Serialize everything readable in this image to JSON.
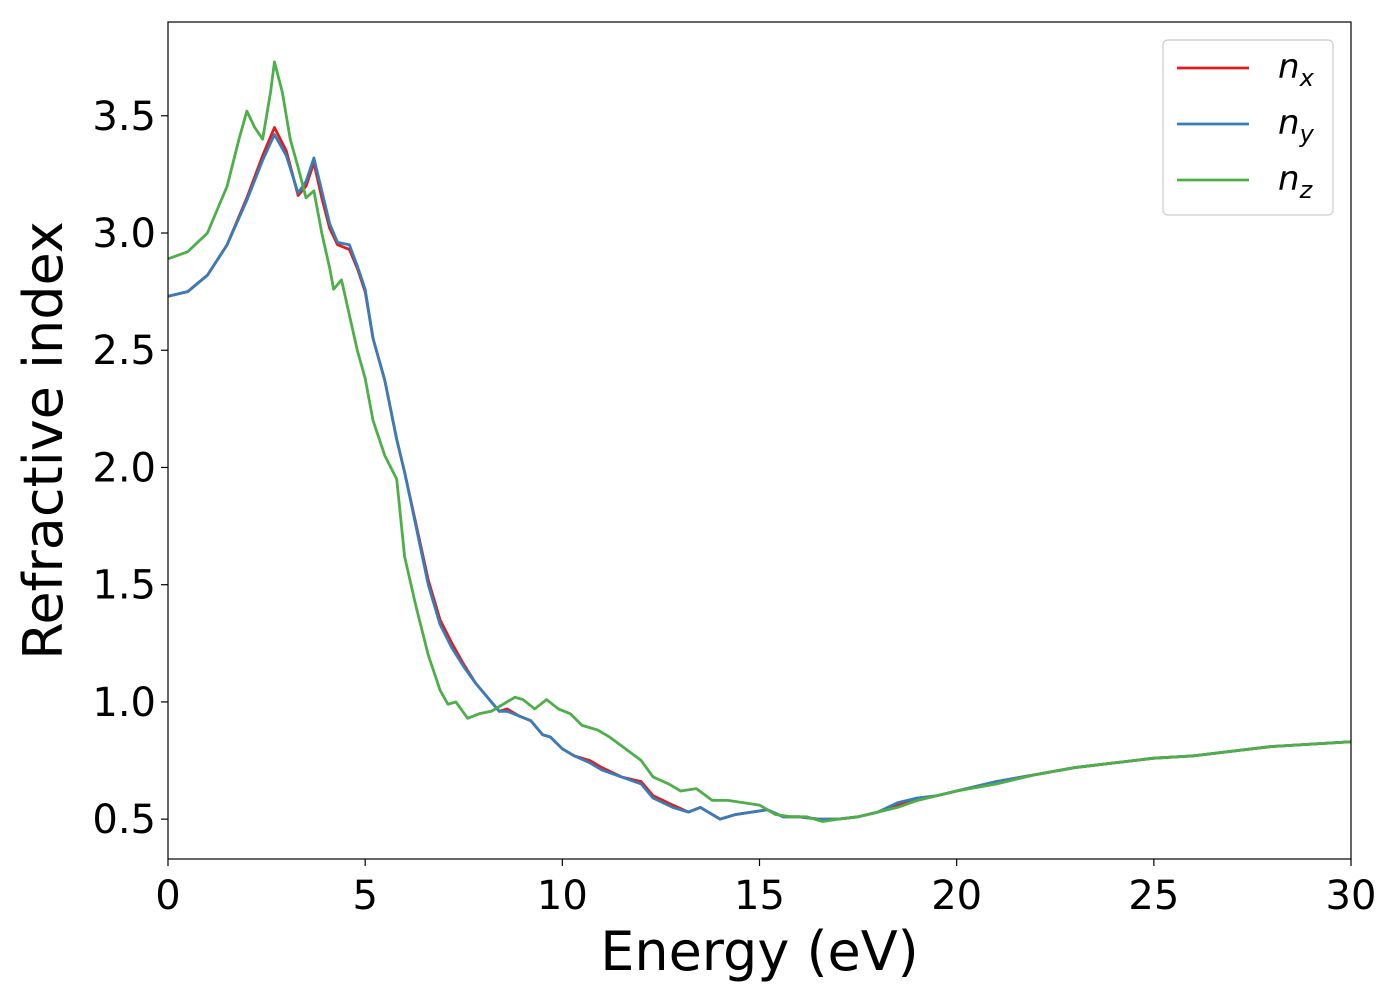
{
  "chart_data": {
    "type": "line",
    "xlabel": "Energy (eV)",
    "ylabel": "Refractive index",
    "xlim": [
      0,
      30
    ],
    "ylim": [
      0.33,
      3.9
    ],
    "xticks": [
      0,
      5,
      10,
      15,
      20,
      25,
      30
    ],
    "xtick_labels": [
      "0",
      "5",
      "10",
      "15",
      "20",
      "25",
      "30"
    ],
    "yticks": [
      0.5,
      1.0,
      1.5,
      2.0,
      2.5,
      3.0,
      3.5
    ],
    "ytick_labels": [
      "0.5",
      "1.0",
      "1.5",
      "2.0",
      "2.5",
      "3.0",
      "3.5"
    ],
    "grid": false,
    "legend_position": "top-right",
    "series": [
      {
        "name": "n",
        "subscript": "x",
        "color": "#e41a1c",
        "points": [
          [
            0,
            2.73
          ],
          [
            0.5,
            2.75
          ],
          [
            1.0,
            2.82
          ],
          [
            1.5,
            2.95
          ],
          [
            2.0,
            3.15
          ],
          [
            2.4,
            3.33
          ],
          [
            2.7,
            3.45
          ],
          [
            3.0,
            3.35
          ],
          [
            3.3,
            3.16
          ],
          [
            3.5,
            3.2
          ],
          [
            3.7,
            3.3
          ],
          [
            3.9,
            3.15
          ],
          [
            4.1,
            3.02
          ],
          [
            4.3,
            2.95
          ],
          [
            4.6,
            2.93
          ],
          [
            4.8,
            2.85
          ],
          [
            5.0,
            2.75
          ],
          [
            5.2,
            2.55
          ],
          [
            5.5,
            2.37
          ],
          [
            5.8,
            2.12
          ],
          [
            6.0,
            1.98
          ],
          [
            6.3,
            1.75
          ],
          [
            6.6,
            1.52
          ],
          [
            6.9,
            1.35
          ],
          [
            7.2,
            1.25
          ],
          [
            7.5,
            1.16
          ],
          [
            7.8,
            1.08
          ],
          [
            8.1,
            1.02
          ],
          [
            8.4,
            0.96
          ],
          [
            8.6,
            0.97
          ],
          [
            8.9,
            0.94
          ],
          [
            9.2,
            0.92
          ],
          [
            9.5,
            0.86
          ],
          [
            9.7,
            0.85
          ],
          [
            10.0,
            0.8
          ],
          [
            10.3,
            0.77
          ],
          [
            10.7,
            0.75
          ],
          [
            11.0,
            0.72
          ],
          [
            11.5,
            0.68
          ],
          [
            12.0,
            0.66
          ],
          [
            12.3,
            0.6
          ],
          [
            12.8,
            0.56
          ],
          [
            13.2,
            0.53
          ],
          [
            13.5,
            0.55
          ],
          [
            13.8,
            0.52
          ],
          [
            14.0,
            0.5
          ],
          [
            14.4,
            0.52
          ],
          [
            14.8,
            0.53
          ],
          [
            15.2,
            0.54
          ],
          [
            15.6,
            0.51
          ],
          [
            16.0,
            0.51
          ],
          [
            16.5,
            0.5
          ],
          [
            17.0,
            0.5
          ],
          [
            17.5,
            0.51
          ],
          [
            18.0,
            0.53
          ],
          [
            18.5,
            0.56
          ],
          [
            19.0,
            0.58
          ],
          [
            19.5,
            0.6
          ],
          [
            20.0,
            0.62
          ],
          [
            21.0,
            0.66
          ],
          [
            22.0,
            0.69
          ],
          [
            23.0,
            0.72
          ],
          [
            24.0,
            0.74
          ],
          [
            25.0,
            0.76
          ],
          [
            26.0,
            0.77
          ],
          [
            27.0,
            0.79
          ],
          [
            28.0,
            0.81
          ],
          [
            29.0,
            0.82
          ],
          [
            30.0,
            0.83
          ]
        ]
      },
      {
        "name": "n",
        "subscript": "y",
        "color": "#377eb8",
        "points": [
          [
            0,
            2.73
          ],
          [
            0.5,
            2.75
          ],
          [
            1.0,
            2.82
          ],
          [
            1.5,
            2.95
          ],
          [
            2.0,
            3.14
          ],
          [
            2.4,
            3.31
          ],
          [
            2.7,
            3.42
          ],
          [
            3.0,
            3.33
          ],
          [
            3.3,
            3.17
          ],
          [
            3.5,
            3.22
          ],
          [
            3.7,
            3.32
          ],
          [
            3.9,
            3.18
          ],
          [
            4.1,
            3.04
          ],
          [
            4.3,
            2.96
          ],
          [
            4.6,
            2.95
          ],
          [
            4.8,
            2.86
          ],
          [
            5.0,
            2.76
          ],
          [
            5.2,
            2.55
          ],
          [
            5.5,
            2.37
          ],
          [
            5.8,
            2.12
          ],
          [
            6.0,
            1.98
          ],
          [
            6.3,
            1.74
          ],
          [
            6.6,
            1.5
          ],
          [
            6.9,
            1.33
          ],
          [
            7.2,
            1.23
          ],
          [
            7.5,
            1.15
          ],
          [
            7.8,
            1.08
          ],
          [
            8.1,
            1.02
          ],
          [
            8.4,
            0.96
          ],
          [
            8.6,
            0.96
          ],
          [
            8.9,
            0.94
          ],
          [
            9.2,
            0.92
          ],
          [
            9.5,
            0.86
          ],
          [
            9.7,
            0.85
          ],
          [
            10.0,
            0.8
          ],
          [
            10.3,
            0.77
          ],
          [
            10.7,
            0.74
          ],
          [
            11.0,
            0.71
          ],
          [
            11.5,
            0.68
          ],
          [
            12.0,
            0.65
          ],
          [
            12.3,
            0.59
          ],
          [
            12.8,
            0.55
          ],
          [
            13.2,
            0.53
          ],
          [
            13.5,
            0.55
          ],
          [
            13.8,
            0.52
          ],
          [
            14.0,
            0.5
          ],
          [
            14.4,
            0.52
          ],
          [
            14.8,
            0.53
          ],
          [
            15.2,
            0.54
          ],
          [
            15.6,
            0.51
          ],
          [
            16.0,
            0.51
          ],
          [
            16.5,
            0.5
          ],
          [
            17.0,
            0.5
          ],
          [
            17.5,
            0.51
          ],
          [
            18.0,
            0.53
          ],
          [
            18.5,
            0.57
          ],
          [
            19.0,
            0.59
          ],
          [
            19.5,
            0.6
          ],
          [
            20.0,
            0.62
          ],
          [
            21.0,
            0.66
          ],
          [
            22.0,
            0.69
          ],
          [
            23.0,
            0.72
          ],
          [
            24.0,
            0.74
          ],
          [
            25.0,
            0.76
          ],
          [
            26.0,
            0.77
          ],
          [
            27.0,
            0.79
          ],
          [
            28.0,
            0.81
          ],
          [
            29.0,
            0.82
          ],
          [
            30.0,
            0.83
          ]
        ]
      },
      {
        "name": "n",
        "subscript": "z",
        "color": "#4daf4a",
        "points": [
          [
            0,
            2.89
          ],
          [
            0.5,
            2.92
          ],
          [
            1.0,
            3.0
          ],
          [
            1.5,
            3.2
          ],
          [
            1.8,
            3.4
          ],
          [
            2.0,
            3.52
          ],
          [
            2.2,
            3.45
          ],
          [
            2.4,
            3.4
          ],
          [
            2.6,
            3.6
          ],
          [
            2.7,
            3.73
          ],
          [
            2.9,
            3.6
          ],
          [
            3.1,
            3.4
          ],
          [
            3.3,
            3.28
          ],
          [
            3.5,
            3.15
          ],
          [
            3.7,
            3.18
          ],
          [
            3.9,
            3.0
          ],
          [
            4.1,
            2.85
          ],
          [
            4.2,
            2.76
          ],
          [
            4.4,
            2.8
          ],
          [
            4.6,
            2.65
          ],
          [
            4.8,
            2.5
          ],
          [
            5.0,
            2.38
          ],
          [
            5.2,
            2.2
          ],
          [
            5.5,
            2.05
          ],
          [
            5.8,
            1.95
          ],
          [
            6.0,
            1.62
          ],
          [
            6.3,
            1.4
          ],
          [
            6.6,
            1.2
          ],
          [
            6.9,
            1.05
          ],
          [
            7.1,
            0.99
          ],
          [
            7.3,
            1.0
          ],
          [
            7.6,
            0.93
          ],
          [
            7.9,
            0.95
          ],
          [
            8.2,
            0.96
          ],
          [
            8.5,
            0.99
          ],
          [
            8.8,
            1.02
          ],
          [
            9.0,
            1.01
          ],
          [
            9.3,
            0.97
          ],
          [
            9.6,
            1.01
          ],
          [
            9.9,
            0.97
          ],
          [
            10.2,
            0.95
          ],
          [
            10.5,
            0.9
          ],
          [
            10.9,
            0.88
          ],
          [
            11.2,
            0.85
          ],
          [
            11.6,
            0.8
          ],
          [
            12.0,
            0.75
          ],
          [
            12.3,
            0.68
          ],
          [
            12.7,
            0.65
          ],
          [
            13.0,
            0.62
          ],
          [
            13.4,
            0.63
          ],
          [
            13.8,
            0.58
          ],
          [
            14.2,
            0.58
          ],
          [
            14.6,
            0.57
          ],
          [
            15.0,
            0.56
          ],
          [
            15.4,
            0.52
          ],
          [
            15.8,
            0.51
          ],
          [
            16.2,
            0.51
          ],
          [
            16.6,
            0.49
          ],
          [
            17.0,
            0.5
          ],
          [
            17.5,
            0.51
          ],
          [
            18.0,
            0.53
          ],
          [
            18.5,
            0.55
          ],
          [
            19.0,
            0.58
          ],
          [
            19.5,
            0.6
          ],
          [
            20.0,
            0.62
          ],
          [
            21.0,
            0.65
          ],
          [
            22.0,
            0.69
          ],
          [
            23.0,
            0.72
          ],
          [
            24.0,
            0.74
          ],
          [
            25.0,
            0.76
          ],
          [
            26.0,
            0.77
          ],
          [
            27.0,
            0.79
          ],
          [
            28.0,
            0.81
          ],
          [
            29.0,
            0.82
          ],
          [
            30.0,
            0.83
          ]
        ]
      }
    ]
  }
}
